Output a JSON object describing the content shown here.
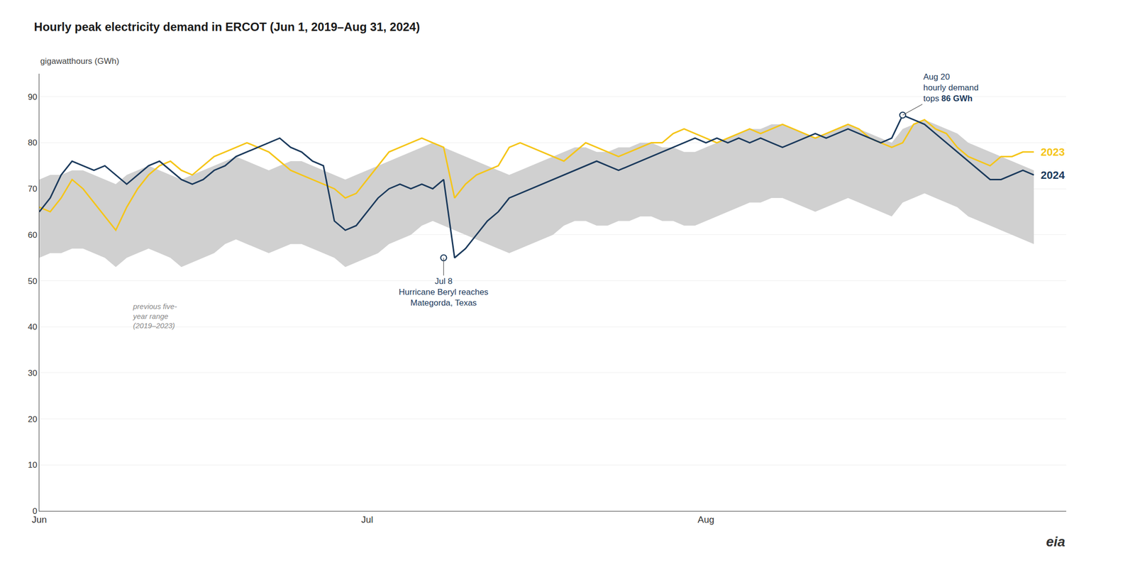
{
  "chart_data": {
    "type": "line",
    "title": "Hourly peak electricity demand in ERCOT (Jun 1, 2019–Aug 31, 2024)",
    "subtitle": "gigawatthours (GWh)",
    "categories": [
      "Jun",
      null,
      null,
      null,
      null,
      null,
      null,
      null,
      null,
      null,
      null,
      null,
      null,
      null,
      null,
      null,
      null,
      null,
      null,
      null,
      null,
      null,
      null,
      null,
      null,
      null,
      null,
      null,
      null,
      null,
      "Jul",
      null,
      null,
      null,
      null,
      null,
      null,
      null,
      null,
      null,
      null,
      null,
      null,
      null,
      null,
      null,
      null,
      null,
      null,
      null,
      null,
      null,
      null,
      null,
      null,
      null,
      null,
      null,
      null,
      null,
      null,
      "Aug",
      null,
      null,
      null,
      null,
      null,
      null,
      null,
      null,
      null,
      null,
      null,
      null,
      null,
      null,
      null,
      null,
      null,
      null,
      null,
      null,
      null,
      null,
      null,
      null,
      null,
      null,
      null,
      null,
      null,
      null
    ],
    "series": [
      {
        "name": "previous five-\nyear range\n(2019–2023)",
        "type": "range",
        "color": "#d0d0d0",
        "upper": [
          72,
          73,
          73,
          74,
          74,
          73,
          72,
          71,
          73,
          74,
          75,
          74,
          73,
          72,
          73,
          74,
          75,
          76,
          77,
          76,
          75,
          74,
          75,
          76,
          76,
          75,
          74,
          73,
          72,
          73,
          74,
          75,
          76,
          77,
          78,
          79,
          80,
          79,
          78,
          77,
          76,
          75,
          74,
          73,
          74,
          75,
          76,
          77,
          78,
          79,
          79,
          78,
          78,
          79,
          79,
          80,
          80,
          79,
          79,
          78,
          78,
          79,
          80,
          81,
          82,
          83,
          83,
          84,
          84,
          83,
          82,
          81,
          82,
          83,
          84,
          83,
          82,
          81,
          80,
          83,
          84,
          85,
          84,
          83,
          82,
          80,
          79,
          78,
          77,
          76,
          75,
          74
        ],
        "lower": [
          55,
          56,
          56,
          57,
          57,
          56,
          55,
          53,
          55,
          56,
          57,
          56,
          55,
          53,
          54,
          55,
          56,
          58,
          59,
          58,
          57,
          56,
          57,
          58,
          58,
          57,
          56,
          55,
          53,
          54,
          55,
          56,
          58,
          59,
          60,
          62,
          63,
          62,
          61,
          60,
          59,
          58,
          57,
          56,
          57,
          58,
          59,
          60,
          62,
          63,
          63,
          62,
          62,
          63,
          63,
          64,
          64,
          63,
          63,
          62,
          62,
          63,
          64,
          65,
          66,
          67,
          67,
          68,
          68,
          67,
          66,
          65,
          66,
          67,
          68,
          67,
          66,
          65,
          64,
          67,
          68,
          69,
          68,
          67,
          66,
          64,
          63,
          62,
          61,
          60,
          59,
          58
        ]
      },
      {
        "name": "2023",
        "color": "#f5c518",
        "values": [
          66,
          65,
          68,
          72,
          70,
          67,
          64,
          61,
          66,
          70,
          73,
          75,
          76,
          74,
          73,
          75,
          77,
          78,
          79,
          80,
          79,
          78,
          76,
          74,
          73,
          72,
          71,
          70,
          68,
          69,
          72,
          75,
          78,
          79,
          80,
          81,
          80,
          79,
          68,
          71,
          73,
          74,
          75,
          79,
          80,
          79,
          78,
          77,
          76,
          78,
          80,
          79,
          78,
          77,
          78,
          79,
          80,
          80,
          82,
          83,
          82,
          81,
          80,
          81,
          82,
          83,
          82,
          83,
          84,
          83,
          82,
          81,
          82,
          83,
          84,
          83,
          81,
          80,
          79,
          80,
          84,
          85,
          83,
          82,
          79,
          77,
          76,
          75,
          77,
          77,
          78,
          78
        ]
      },
      {
        "name": "2024",
        "color": "#1b3a5c",
        "values": [
          65,
          68,
          73,
          76,
          75,
          74,
          75,
          73,
          71,
          73,
          75,
          76,
          74,
          72,
          71,
          72,
          74,
          75,
          77,
          78,
          79,
          80,
          81,
          79,
          78,
          76,
          75,
          63,
          61,
          62,
          65,
          68,
          70,
          71,
          70,
          71,
          70,
          72,
          55,
          57,
          60,
          63,
          65,
          68,
          69,
          70,
          71,
          72,
          73,
          74,
          75,
          76,
          75,
          74,
          75,
          76,
          77,
          78,
          79,
          80,
          81,
          80,
          81,
          80,
          81,
          80,
          81,
          80,
          79,
          80,
          81,
          82,
          81,
          82,
          83,
          82,
          81,
          80,
          81,
          86,
          85,
          84,
          82,
          80,
          78,
          76,
          74,
          72,
          72,
          73,
          74,
          73
        ]
      }
    ],
    "annotations": [
      {
        "text": "Jul 8\nHurricane Beryl reaches\nMategorda, Texas",
        "x": 37,
        "y": 55,
        "color": "#1b3a5c"
      },
      {
        "text": "Aug 20\nhourly demand\ntops 86 GWh",
        "bold": "86 GWh",
        "x": 79,
        "y": 86,
        "color": "#1b3a5c"
      }
    ],
    "logo": "eia",
    "ylim": [
      0,
      95
    ],
    "yticks": [
      0,
      10,
      20,
      30,
      40,
      50,
      60,
      70,
      80,
      90
    ],
    "grid": true
  }
}
